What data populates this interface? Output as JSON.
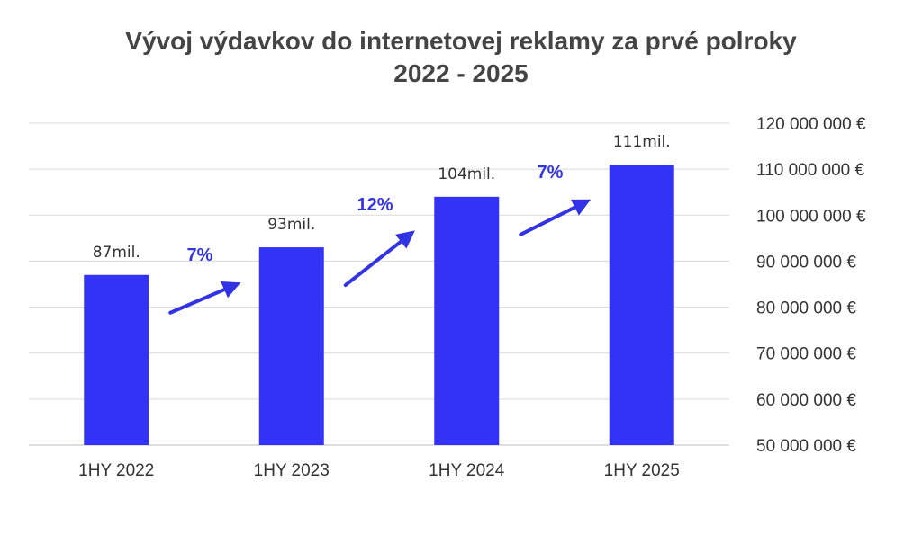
{
  "chart_data": {
    "type": "bar",
    "title_lines": [
      "Vývoj výdavkov do internetovej reklamy za prvé polroky",
      "2022 - 2025"
    ],
    "categories": [
      "1HY 2022",
      "1HY 2023",
      "1HY 2024",
      "1HY 2025"
    ],
    "values": [
      87000000,
      93000000,
      104000000,
      111000000
    ],
    "data_labels": [
      "87mil.",
      "93mil.",
      "104mil.",
      "111mil."
    ],
    "y_axis": {
      "position": "right",
      "ylim": [
        50000000,
        120000000
      ],
      "ticks": [
        50000000,
        60000000,
        70000000,
        80000000,
        90000000,
        100000000,
        110000000,
        120000000
      ],
      "tick_labels": [
        "50 000 000 €",
        "60 000 000 €",
        "70 000 000 €",
        "80 000 000 €",
        "90 000 000 €",
        "100 000 000 €",
        "110 000 000 €",
        "120 000 000 €"
      ]
    },
    "grid": true,
    "growth_annotations": [
      {
        "label": "7%",
        "from": "1HY 2022",
        "to": "1HY 2023"
      },
      {
        "label": "12%",
        "from": "1HY 2023",
        "to": "1HY 2024"
      },
      {
        "label": "7%",
        "from": "1HY 2024",
        "to": "1HY 2025"
      }
    ],
    "colors": {
      "bar": "#3333f5",
      "arrow": "#3333e6",
      "grid": "#d9d9d9",
      "axis": "#bfbfbf",
      "growth_text": "#3333e6"
    }
  }
}
